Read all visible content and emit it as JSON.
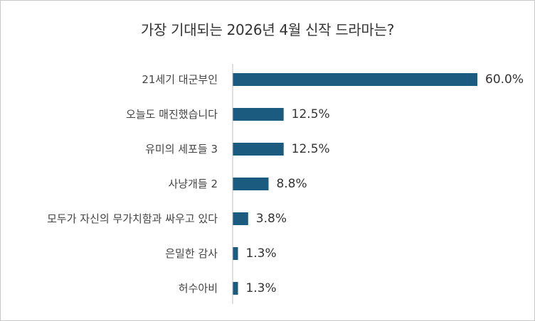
{
  "chart_data": {
    "type": "bar",
    "orientation": "horizontal",
    "title": "가장 기대되는 2026년 4월 신작 드라마는?",
    "categories": [
      "21세기 대군부인",
      "오늘도 매진했습니다",
      "유미의 세포들 3",
      "사냥개들 2",
      "모두가 자신의 무가치함과 싸우고 있다",
      "은밀한 감사",
      "허수아비"
    ],
    "values": [
      60.0,
      12.5,
      12.5,
      8.8,
      3.8,
      1.3,
      1.3
    ],
    "value_labels": [
      "60.0%",
      "12.5%",
      "12.5%",
      "8.8%",
      "3.8%",
      "1.3%",
      "1.3%"
    ],
    "unit": "%",
    "xlim": [
      0,
      60
    ],
    "grid": false,
    "legend": "none",
    "colors": {
      "bar": "#1b5b80",
      "axis": "#bfbfbf",
      "text": "#333333",
      "border": "#c8c8c8"
    }
  }
}
